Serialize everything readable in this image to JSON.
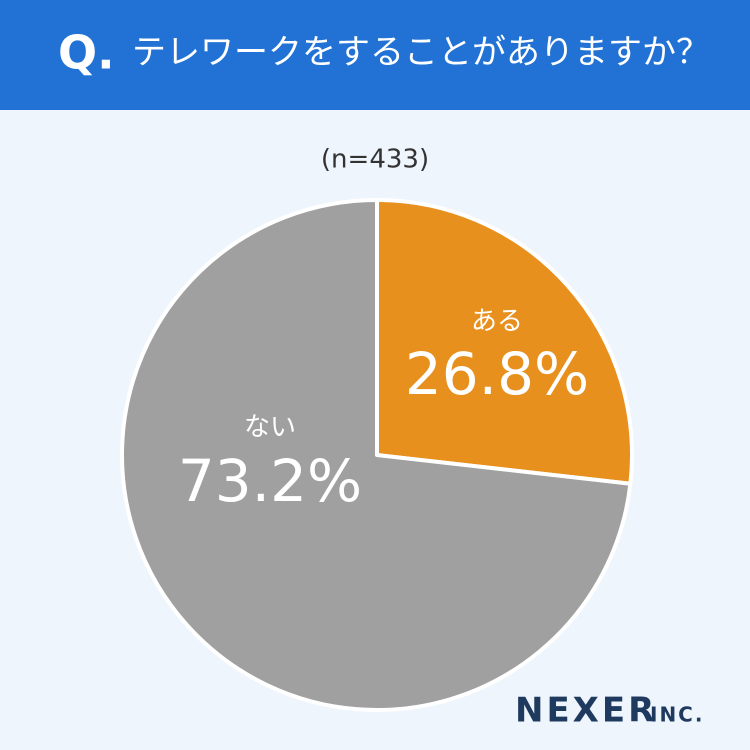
{
  "chart_data": {
    "type": "pie",
    "question_mark": "Q.",
    "title": "テレワークをすることがありますか？",
    "subtitle": "(n=433)",
    "categories": [
      "ある",
      "ない"
    ],
    "values": [
      26.8,
      73.2
    ],
    "value_labels": [
      "26.8%",
      "73.2%"
    ],
    "colors": [
      "#e8901e",
      "#a0a0a0"
    ]
  },
  "logo": {
    "name": "NEXER",
    "suffix": "INC."
  }
}
